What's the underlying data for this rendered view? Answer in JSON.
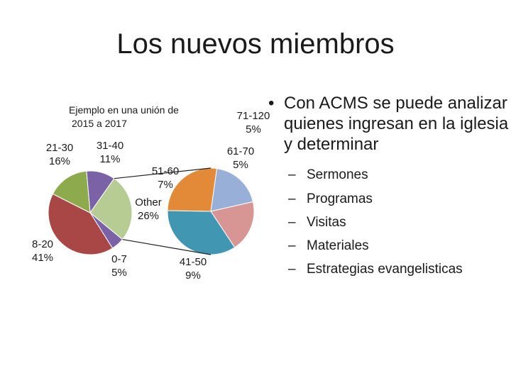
{
  "title": "Los nuevos miembros",
  "bullet": {
    "text": "Con ACMS se puede analizar quienes ingresan en la iglesia y determinar",
    "sub_items": [
      "Sermones",
      "Programas",
      "Visitas",
      "Materiales",
      "Estrategias evangelisticas"
    ]
  },
  "chart_data": {
    "type": "pie",
    "subtype": "pie-of-pie",
    "title": "Ejemplo en una unión de 2015 a 2017",
    "primary": {
      "slices": [
        {
          "label": "31-40",
          "value_label": "11%",
          "value": 11,
          "color": "#7b62a6"
        },
        {
          "label": "Other",
          "value_label": "26%",
          "value": 26,
          "color": "#b6cc92"
        },
        {
          "label": "0-7",
          "value_label": "5%",
          "value": 5,
          "color": "#7b62a6"
        },
        {
          "label": "8-20",
          "value_label": "41%",
          "value": 41,
          "color": "#a84745"
        },
        {
          "label": "21-30",
          "value_label": "16%",
          "value": 16,
          "color": "#8dab4d"
        }
      ]
    },
    "secondary": {
      "of": "Other",
      "slices": [
        {
          "label": "71-120",
          "value_label": "5%",
          "value": 5,
          "color": "#98b0d8"
        },
        {
          "label": "61-70",
          "value_label": "5%",
          "value": 5,
          "color": "#d79594"
        },
        {
          "label": "41-50",
          "value_label": "9%",
          "value": 9,
          "color": "#4197b2"
        },
        {
          "label": "51-60",
          "value_label": "7%",
          "value": 7,
          "color": "#e38a38"
        }
      ]
    },
    "legend": "none"
  }
}
